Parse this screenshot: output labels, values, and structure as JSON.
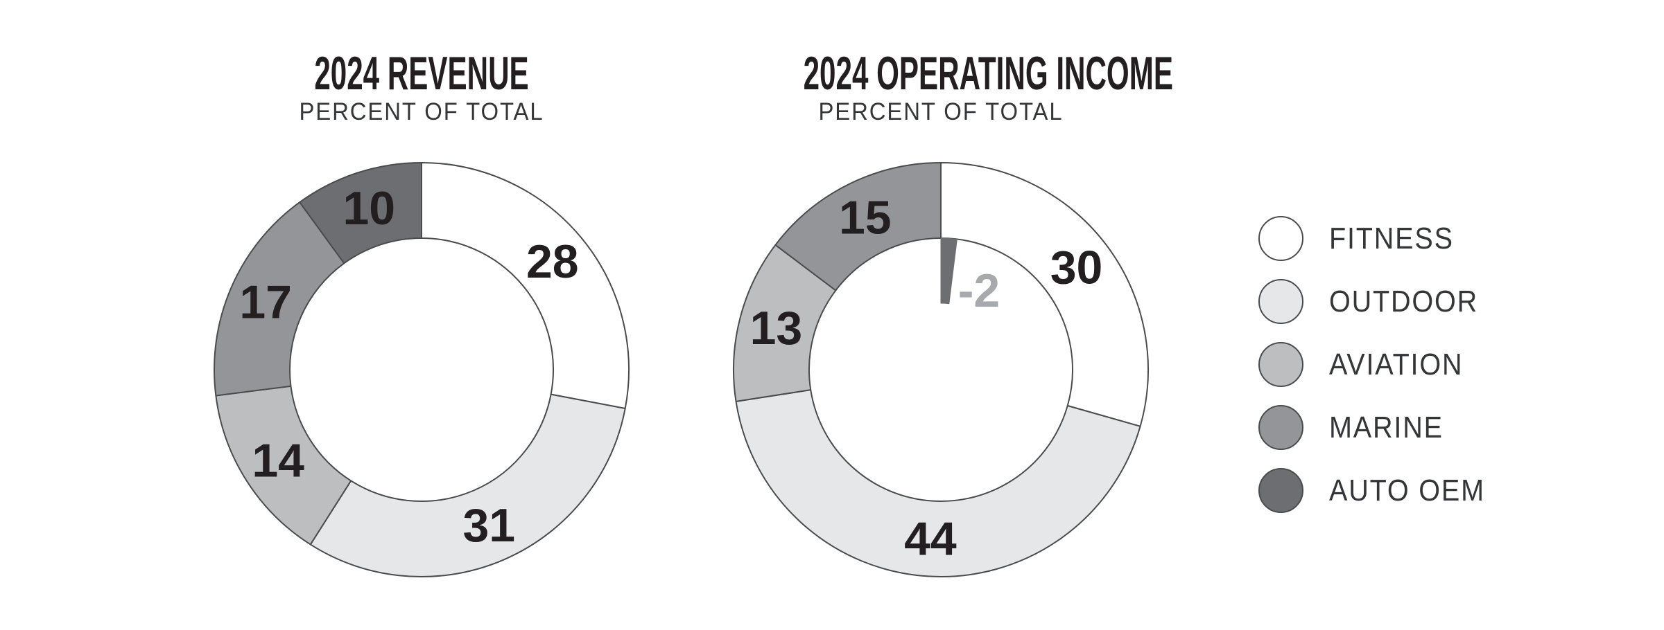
{
  "page": {
    "background": "#FFFFFF"
  },
  "chart_data": [
    {
      "type": "pie",
      "subtype": "donut",
      "title": "2024 REVENUE",
      "subtitle": "PERCENT OF TOTAL",
      "unit": "percent of total",
      "categories": [
        "FITNESS",
        "OUTDOOR",
        "AVIATION",
        "MARINE",
        "AUTO OEM"
      ],
      "values": [
        28,
        31,
        14,
        17,
        10
      ],
      "start_angle": "12-oclock",
      "direction": "clockwise",
      "labels_on_slices": true
    },
    {
      "type": "pie",
      "subtype": "donut",
      "title": "2024 OPERATING INCOME",
      "subtitle": "PERCENT OF TOTAL",
      "unit": "percent of total",
      "categories": [
        "FITNESS",
        "OUTDOOR",
        "AVIATION",
        "MARINE",
        "AUTO OEM"
      ],
      "values": [
        30,
        44,
        13,
        15,
        -2
      ],
      "negative_rendering": "AUTO OEM -2 drawn as thin dark wedge pointing inward from inner ring at 12 o'clock with gray label",
      "start_angle": "12-oclock",
      "direction": "clockwise",
      "labels_on_slices": true
    }
  ],
  "legend": {
    "items": [
      {
        "label": "FITNESS",
        "color": "#FFFFFF"
      },
      {
        "label": "OUTDOOR",
        "color": "#E6E7E8"
      },
      {
        "label": "AVIATION",
        "color": "#BCBEC0"
      },
      {
        "label": "MARINE",
        "color": "#939598"
      },
      {
        "label": "AUTO OEM",
        "color": "#6D6E71"
      }
    ]
  },
  "colors": {
    "outline": "#4A4B4D",
    "slice_label": "#231F20",
    "negative_label": "#A7A9AC",
    "title": "#231F20",
    "subtitle": "#353638",
    "legend_text": "#353638"
  }
}
